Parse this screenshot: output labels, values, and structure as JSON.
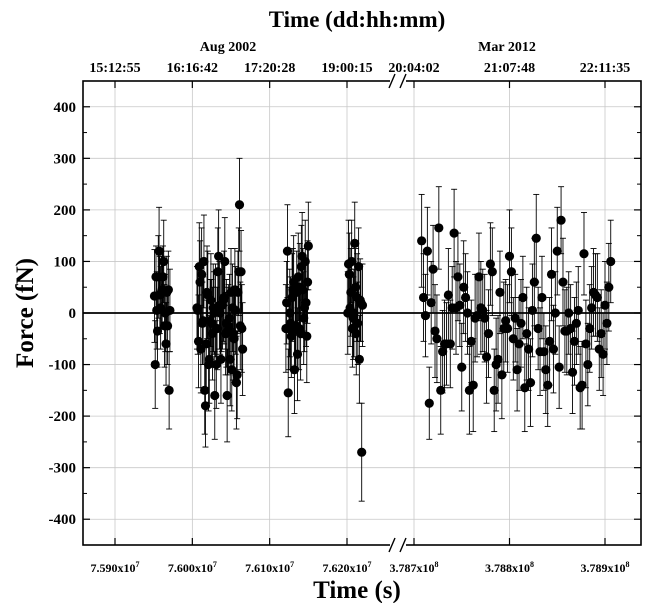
{
  "chart_data": {
    "type": "scatter",
    "title": "Time (dd:hh:mm)",
    "xlabel": "Time (s)",
    "ylabel": "Force (fN)",
    "ylim": [
      -450,
      450
    ],
    "grid": true,
    "axis_break": true,
    "y_ticks": [
      "400",
      "300",
      "200",
      "100",
      "0",
      "-100",
      "-200",
      "-300",
      "-400"
    ],
    "bottom_ticks": [
      "7.590x10^7",
      "7.600x10^7",
      "7.610x10^7",
      "7.620x10^7",
      "3.787x10^8",
      "3.788x10^8",
      "3.789x10^8"
    ],
    "top_ticks": [
      "15:12:55",
      "16:16:42",
      "17:20:28",
      "19:00:15",
      "20:04:02",
      "21:07:48",
      "22:11:35"
    ],
    "period_labels": [
      "Aug 2002",
      "Mar 2012"
    ],
    "series": [
      {
        "x": [
          75951000,
          75952000,
          75953000,
          75954000,
          75955000,
          75956000,
          75957000,
          75958000,
          75959000,
          75960000,
          75961000,
          75962000,
          75963000,
          75964000,
          75965000,
          75966000,
          75967000,
          75968000,
          75969000,
          75970000,
          75971000
        ],
        "y": [
          33,
          -100,
          70,
          5,
          -35,
          70,
          120,
          35,
          10,
          40,
          45,
          70,
          100,
          -25,
          0,
          -60,
          40,
          -25,
          45,
          -150,
          5
        ],
        "err": [
          90,
          85,
          60,
          75,
          70,
          80,
          85,
          75,
          80,
          70,
          75,
          60,
          80,
          80,
          75,
          80,
          70,
          75,
          75,
          75,
          80
        ]
      },
      {
        "x": [
          76006000,
          76007000,
          76008000,
          76009000,
          76010000,
          76011000,
          76012000,
          76013000,
          76014000,
          76015000,
          76016000,
          76017000,
          76018000,
          76019000,
          76020000,
          76021000,
          76022000,
          76023000,
          76024000,
          76025000,
          76026000,
          76027000,
          76028000,
          76029000,
          76030000,
          76031000,
          76032000,
          76033000,
          76034000,
          76035000,
          76036000,
          76037000,
          76038000,
          76039000,
          76040000,
          76041000,
          76042000,
          76043000,
          76044000,
          76045000,
          76046000,
          76047000,
          76048000,
          76049000,
          76050000,
          76051000,
          76052000,
          76053000,
          76054000,
          76055000,
          76056000,
          76057000,
          76058000,
          76059000,
          76060000,
          76061000,
          76062000,
          76063000,
          76064000,
          76065000
        ],
        "y": [
          10,
          5,
          -55,
          90,
          60,
          -70,
          75,
          -20,
          -15,
          100,
          -150,
          -180,
          -60,
          40,
          35,
          -100,
          -90,
          -15,
          25,
          -20,
          -40,
          10,
          0,
          -160,
          5,
          -100,
          -30,
          80,
          110,
          15,
          0,
          -90,
          15,
          15,
          25,
          30,
          100,
          -40,
          -20,
          -160,
          -35,
          -25,
          -10,
          -90,
          40,
          -110,
          10,
          -40,
          -50,
          45,
          5,
          -135,
          -120,
          40,
          80,
          210,
          -25,
          80,
          -30,
          -70
        ],
        "err": [
          80,
          85,
          90,
          85,
          80,
          85,
          90,
          80,
          85,
          90,
          85,
          80,
          85,
          90,
          85,
          90,
          85,
          80,
          90,
          85,
          90,
          85,
          80,
          85,
          90,
          85,
          80,
          85,
          90,
          85,
          80,
          85,
          90,
          85,
          80,
          90,
          85,
          80,
          85,
          90,
          85,
          80,
          85,
          90,
          85,
          80,
          85,
          90,
          85,
          80,
          85,
          90,
          85,
          80,
          85,
          90,
          85,
          80,
          85,
          90
        ]
      },
      {
        "x": [
          76121000,
          76122000,
          76123000,
          76124000,
          76125000,
          76126000,
          76127000,
          76128000,
          76129000,
          76130000,
          76131000,
          76132000,
          76133000,
          76134000,
          76135000,
          76136000,
          76137000,
          76138000,
          76139000,
          76140000,
          76141000,
          76142000,
          76143000,
          76144000,
          76145000,
          76146000,
          76147000,
          76148000,
          76149000,
          76150000
        ],
        "y": [
          -30,
          20,
          120,
          -155,
          -30,
          0,
          -20,
          -45,
          30,
          45,
          60,
          -110,
          -30,
          -25,
          40,
          -80,
          70,
          -30,
          50,
          -40,
          90,
          110,
          45,
          -10,
          10,
          100,
          20,
          -45,
          60,
          130
        ],
        "err": [
          85,
          80,
          90,
          85,
          80,
          85,
          90,
          80,
          85,
          80,
          90,
          85,
          80,
          85,
          80,
          90,
          85,
          80,
          85,
          90,
          80,
          85,
          80,
          90,
          85,
          80,
          85,
          90,
          80,
          85
        ]
      },
      {
        "x": [
          76201000,
          76202000,
          76203000,
          76204000,
          76205000,
          76206000,
          76207000,
          76208000,
          76209000,
          76210000,
          76211000,
          76212000,
          76213000,
          76214000,
          76215000,
          76216000,
          76217000,
          76218000,
          76219000,
          76220000
        ],
        "y": [
          0,
          95,
          75,
          10,
          40,
          100,
          -30,
          -10,
          0,
          135,
          50,
          -40,
          30,
          -20,
          90,
          -90,
          25,
          20,
          -270,
          15
        ],
        "err": [
          80,
          85,
          80,
          75,
          85,
          80,
          75,
          80,
          85,
          80,
          75,
          80,
          85,
          80,
          75,
          85,
          80,
          75,
          95,
          80
        ]
      },
      {
        "x": [
          378708000,
          378710000,
          378712000,
          378714000,
          378716000,
          378718000,
          378720000,
          378722000,
          378724000,
          378726000,
          378728000,
          378730000,
          378732000,
          378734000,
          378736000,
          378738000,
          378740000,
          378742000,
          378744000,
          378746000,
          378748000,
          378750000,
          378752000,
          378754000,
          378756000,
          378758000,
          378760000,
          378762000,
          378764000,
          378766000,
          378768000,
          378770000,
          378772000,
          378774000,
          378776000,
          378778000,
          378780000,
          378782000,
          378784000,
          378786000,
          378788000,
          378790000,
          378792000,
          378794000,
          378796000,
          378798000,
          378800000,
          378802000,
          378804000,
          378806000,
          378808000,
          378810000,
          378812000,
          378814000,
          378816000,
          378818000,
          378820000,
          378822000,
          378824000,
          378826000
        ],
        "y": [
          140,
          30,
          -5,
          120,
          -175,
          20,
          85,
          -35,
          -50,
          165,
          -150,
          -75,
          -60,
          -60,
          35,
          -60,
          10,
          155,
          10,
          70,
          15,
          -105,
          50,
          30,
          0,
          -150,
          -55,
          -140,
          -10,
          -5,
          70,
          10,
          5,
          -10,
          -85,
          -40,
          95,
          80,
          -150,
          -100,
          -90,
          40,
          -120,
          -30,
          -15,
          -30,
          110,
          80,
          -50,
          -10,
          -110,
          -60,
          -20,
          30,
          -145,
          -40,
          -70,
          -135,
          5,
          60
        ],
        "err": [
          90,
          85,
          80,
          85,
          70,
          80,
          85,
          90,
          85,
          80,
          85,
          80,
          85,
          80,
          90,
          85,
          80,
          85,
          90,
          85,
          80,
          85,
          90,
          85,
          80,
          85,
          80,
          90,
          85,
          80,
          85,
          90,
          80,
          85,
          90,
          85,
          80,
          85,
          80,
          90,
          85,
          80,
          85,
          90,
          80,
          85,
          90,
          85,
          80,
          85,
          80,
          90,
          85,
          80,
          85,
          90,
          80,
          85,
          90,
          85
        ]
      },
      {
        "x": [
          378828000,
          378830000,
          378832000,
          378834000,
          378836000,
          378838000,
          378840000,
          378842000,
          378844000,
          378846000,
          378848000,
          378850000,
          378852000,
          378854000,
          378856000,
          378858000,
          378860000,
          378862000,
          378864000,
          378866000,
          378868000,
          378870000,
          378872000,
          378874000,
          378876000,
          378878000,
          378880000,
          378882000,
          378884000,
          378886000,
          378888000,
          378890000,
          378892000,
          378894000,
          378896000,
          378898000,
          378900000,
          378902000,
          378904000,
          378906000
        ],
        "y": [
          145,
          -30,
          -75,
          30,
          -75,
          -110,
          -140,
          -55,
          75,
          -70,
          0,
          120,
          -105,
          180,
          60,
          -35,
          -35,
          0,
          -30,
          -115,
          -55,
          -20,
          5,
          -145,
          -140,
          115,
          -60,
          -100,
          -30,
          10,
          40,
          35,
          30,
          -70,
          -40,
          -80,
          15,
          -20,
          50,
          100
        ],
        "err": [
          85,
          80,
          85,
          80,
          75,
          85,
          80,
          85,
          90,
          85,
          80,
          85,
          80,
          65,
          85,
          80,
          85,
          80,
          85,
          80,
          85,
          80,
          85,
          80,
          85,
          80,
          85,
          80,
          85,
          80,
          85,
          80,
          85,
          80,
          85,
          80,
          85,
          80,
          85,
          80
        ]
      }
    ]
  }
}
